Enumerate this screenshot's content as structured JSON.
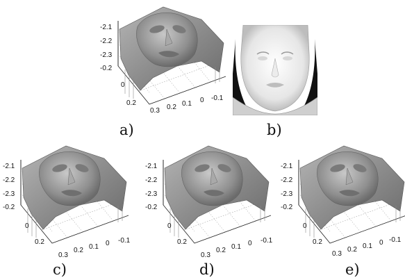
{
  "figure": {
    "panels": [
      {
        "id": "a",
        "caption": "a)",
        "kind": "surface-plot",
        "z_ticks": [
          "-2.1",
          "-2.2",
          "-2.3"
        ],
        "y_ticks": [
          "-0.2",
          "0",
          "0.2"
        ],
        "x_ticks": [
          "0.3",
          "0.2",
          "0.1",
          "0",
          "-0.1"
        ]
      },
      {
        "id": "b",
        "caption": "b)",
        "kind": "rendered-face"
      },
      {
        "id": "c",
        "caption": "c)",
        "kind": "surface-plot",
        "z_ticks": [
          "-2.1",
          "-2.2",
          "-2.3"
        ],
        "y_ticks": [
          "-0.2",
          "0",
          "0.2"
        ],
        "x_ticks": [
          "0.3",
          "0.2",
          "0.1",
          "0",
          "-0.1"
        ]
      },
      {
        "id": "d",
        "caption": "d)",
        "kind": "surface-plot",
        "z_ticks": [
          "-2.1",
          "-2.2",
          "-2.3"
        ],
        "y_ticks": [
          "-0.2",
          "0",
          "0.2"
        ],
        "x_ticks": [
          "0.3",
          "0.2",
          "0.1",
          "0",
          "-0.1"
        ]
      },
      {
        "id": "e",
        "caption": "e)",
        "kind": "surface-plot",
        "z_ticks": [
          "-2.1",
          "-2.2",
          "-2.3"
        ],
        "y_ticks": [
          "-0.2",
          "0",
          "0.2"
        ],
        "x_ticks": [
          "0.3",
          "0.2",
          "0.1",
          "0",
          "-0.1"
        ]
      }
    ]
  }
}
